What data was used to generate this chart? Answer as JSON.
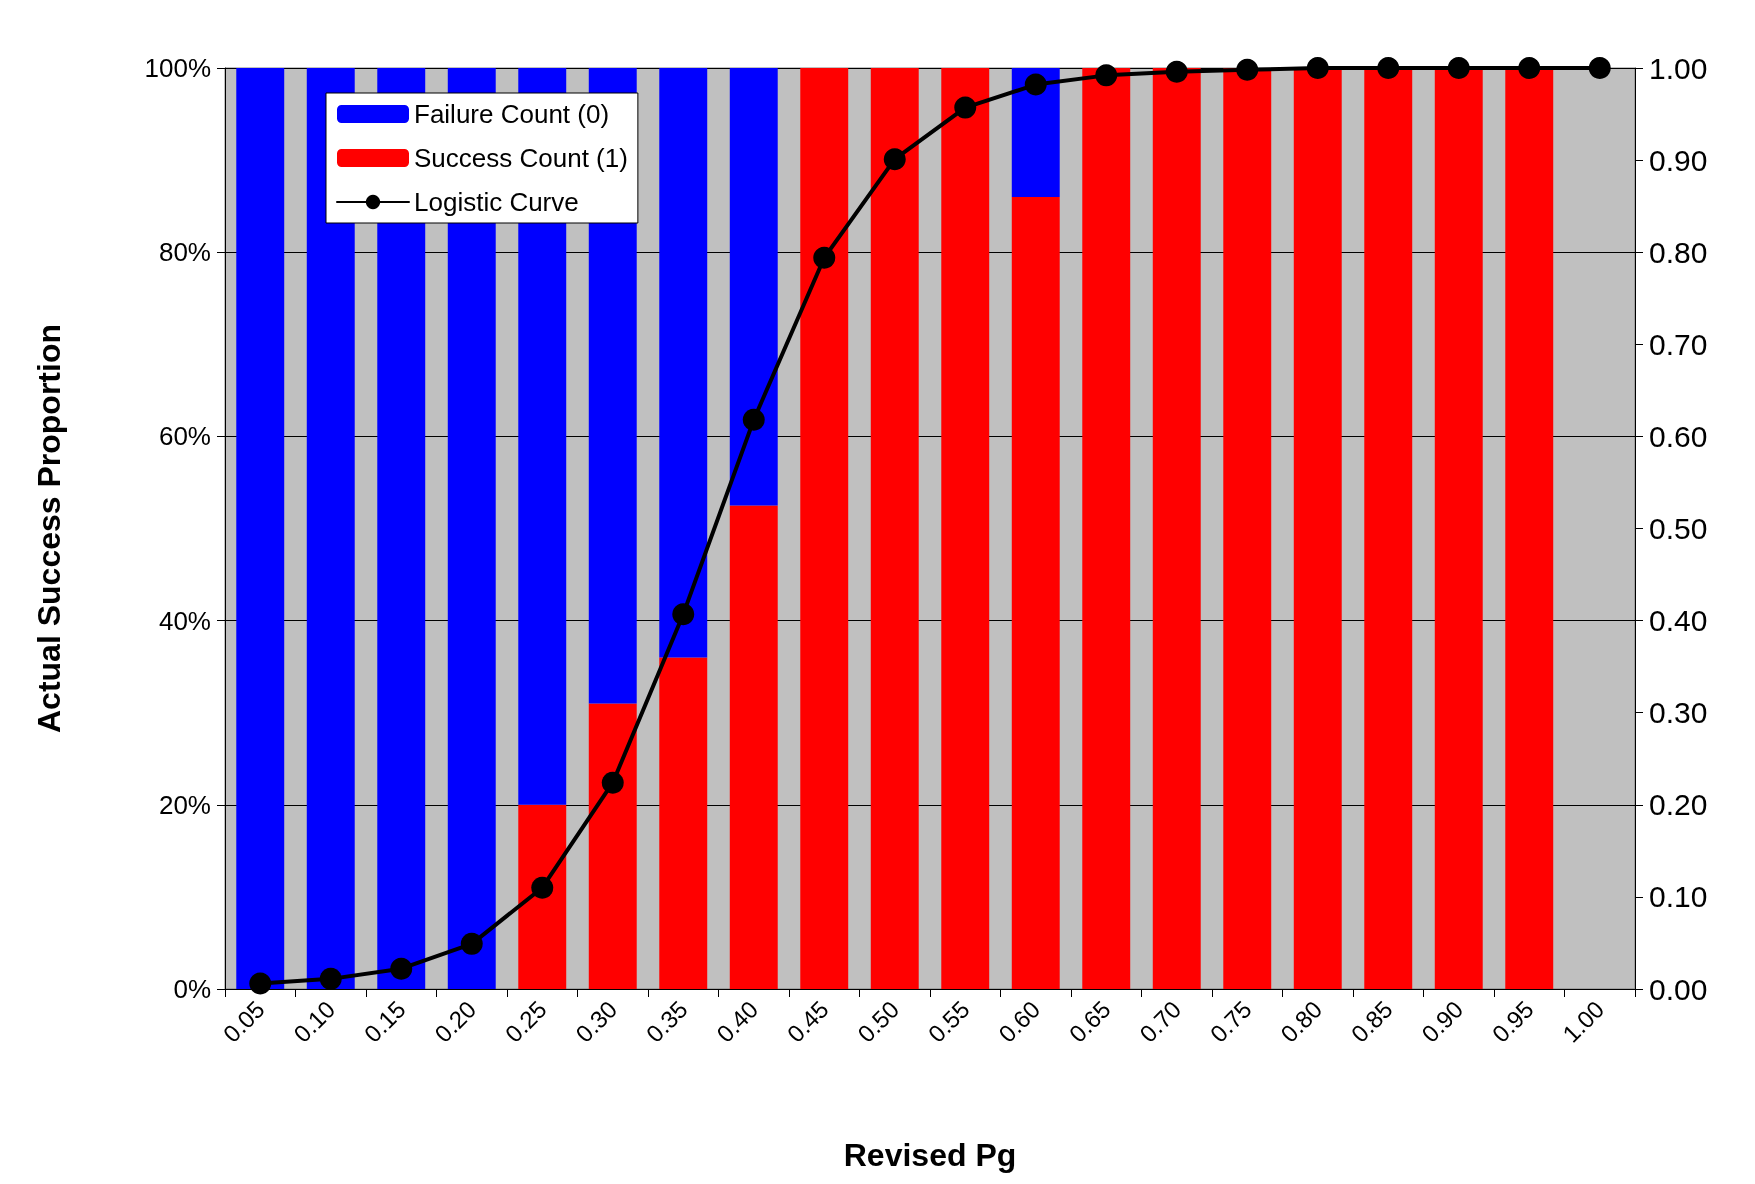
{
  "chart_data": {
    "type": "bar",
    "xlabel": "Revised Pg",
    "ylabel": "Actual Success Proportion",
    "categories": [
      "0.05",
      "0.10",
      "0.15",
      "0.20",
      "0.25",
      "0.30",
      "0.35",
      "0.40",
      "0.45",
      "0.50",
      "0.55",
      "0.60",
      "0.65",
      "0.70",
      "0.75",
      "0.80",
      "0.85",
      "0.90",
      "0.95",
      "1.00"
    ],
    "stacked": true,
    "series": [
      {
        "name": "Success Count (1)",
        "color": "#ff0000",
        "values": [
          0,
          0,
          0,
          0,
          20,
          31,
          36,
          52.5,
          100,
          100,
          100,
          86,
          100,
          100,
          100,
          100,
          100,
          100,
          100,
          null
        ]
      },
      {
        "name": "Failure Count (0)",
        "color": "#0000ff",
        "values": [
          100,
          100,
          100,
          100,
          80,
          69,
          64,
          47.5,
          0,
          0,
          0,
          14,
          0,
          0,
          0,
          0,
          0,
          0,
          0,
          null
        ]
      },
      {
        "name": "Logistic Curve",
        "type": "line",
        "axis": "y2",
        "color": "#000000",
        "marker": "circle",
        "line_style": "solid",
        "values": [
          0.006,
          0.011,
          0.022,
          0.049,
          0.11,
          0.224,
          0.407,
          0.618,
          0.794,
          0.901,
          0.957,
          0.982,
          0.992,
          0.996,
          0.998,
          1.0,
          1.0,
          1.0,
          1.0,
          1.0
        ]
      }
    ],
    "ylim": [
      0,
      100
    ],
    "yticks": [
      {
        "value": 0,
        "label": "0%"
      },
      {
        "value": 20,
        "label": "20%"
      },
      {
        "value": 40,
        "label": "40%"
      },
      {
        "value": 60,
        "label": "60%"
      },
      {
        "value": 80,
        "label": "80%"
      },
      {
        "value": 100,
        "label": "100%"
      }
    ],
    "y2lim": [
      0,
      1
    ],
    "y2ticks": [
      {
        "value": 0,
        "label": "0.00"
      },
      {
        "value": 0.1,
        "label": "0.10"
      },
      {
        "value": 0.2,
        "label": "0.20"
      },
      {
        "value": 0.3,
        "label": "0.30"
      },
      {
        "value": 0.4,
        "label": "0.40"
      },
      {
        "value": 0.5,
        "label": "0.50"
      },
      {
        "value": 0.6,
        "label": "0.60"
      },
      {
        "value": 0.7,
        "label": "0.70"
      },
      {
        "value": 0.8,
        "label": "0.80"
      },
      {
        "value": 0.9,
        "label": "0.90"
      },
      {
        "value": 1,
        "label": "1.00"
      }
    ],
    "grid": "y",
    "legend": "top left"
  }
}
